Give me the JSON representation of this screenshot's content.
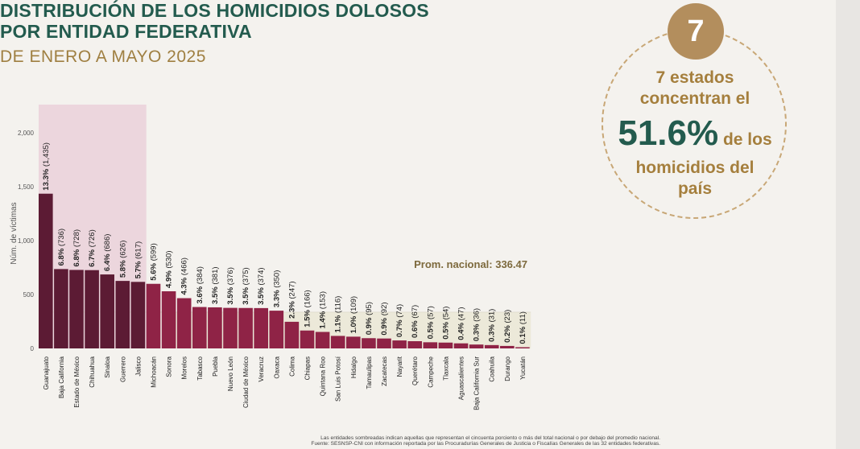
{
  "title": {
    "line1": "DISTRIBUCIÓN DE LOS HOMICIDIOS DOLOSOS",
    "line2": "POR ENTIDAD FEDERATIVA",
    "subtitle": "DE ENERO A MAYO 2025"
  },
  "callout": {
    "badge": "7",
    "line1": "7 estados",
    "line2": "concentran el",
    "big": "51.6%",
    "after_big": "de los",
    "line4": "homicidios del",
    "line5": "país"
  },
  "colors": {
    "highlight_bar": "#5c1b34",
    "bar": "#8f2346",
    "highlight_band": "#ecd6dd",
    "average_band": "#ece9d9",
    "green": "#235b4e",
    "gold": "#a57f3d"
  },
  "chart_data": {
    "type": "bar",
    "ylabel": "Núm. de víctimas",
    "yticks": [
      0,
      500,
      1000,
      1500,
      2000
    ],
    "ytick_labels": [
      "0",
      "500",
      "1,000",
      "1,500",
      "2,000"
    ],
    "ylim": [
      0,
      2200
    ],
    "average_label": "Prom. nacional: 336.47",
    "average_value": 336.47,
    "highlighted_count": 7,
    "categories": [
      "Guanajuato",
      "Baja California",
      "Estado de México",
      "Chihuahua",
      "Sinaloa",
      "Guerrero",
      "Jalisco",
      "Michoacán",
      "Sonora",
      "Morelos",
      "Tabasco",
      "Puebla",
      "Nuevo León",
      "Ciudad de México",
      "Veracruz",
      "Oaxaca",
      "Colima",
      "Chiapas",
      "Quintana Roo",
      "San Luis Potosí",
      "Hidalgo",
      "Tamaulipas",
      "Zacatecas",
      "Nayarit",
      "Querétaro",
      "Campeche",
      "Tlaxcala",
      "Aguascalientes",
      "Baja California Sur",
      "Coahuila",
      "Durango",
      "Yucatán"
    ],
    "values": [
      1435,
      736,
      728,
      726,
      686,
      626,
      617,
      599,
      530,
      466,
      384,
      381,
      376,
      375,
      374,
      350,
      247,
      166,
      153,
      116,
      109,
      95,
      92,
      74,
      67,
      57,
      54,
      47,
      36,
      31,
      23,
      11
    ],
    "percent_labels": [
      "13.3%",
      "6.8%",
      "6.8%",
      "6.7%",
      "6.4%",
      "5.8%",
      "5.7%",
      "5.6%",
      "4.9%",
      "4.3%",
      "3.6%",
      "3.5%",
      "3.5%",
      "3.5%",
      "3.5%",
      "3.3%",
      "2.3%",
      "1.5%",
      "1.4%",
      "1.1%",
      "1.0%",
      "0.9%",
      "0.9%",
      "0.7%",
      "0.6%",
      "0.5%",
      "0.5%",
      "0.4%",
      "0.3%",
      "0.3%",
      "0.2%",
      "0.1%"
    ],
    "count_labels": [
      "(1,435)",
      "(736)",
      "(728)",
      "(726)",
      "(686)",
      "(626)",
      "(617)",
      "(599)",
      "(530)",
      "(466)",
      "(384)",
      "(381)",
      "(376)",
      "(375)",
      "(374)",
      "(350)",
      "(247)",
      "(166)",
      "(153)",
      "(116)",
      "(109)",
      "(95)",
      "(92)",
      "(74)",
      "(67)",
      "(57)",
      "(54)",
      "(47)",
      "(36)",
      "(31)",
      "(23)",
      "(11)"
    ]
  },
  "footnote": {
    "line1": "Las entidades sombreadas indican aquellas que representan el cincuenta porciento o más del total nacional o por debajo del promedio nacional.",
    "line2": "Fuente: SESNSP-CNI con información reportada por las Procuradurías Generales de Justicia o Fiscalías Generales de las 32 entidades federativas."
  }
}
